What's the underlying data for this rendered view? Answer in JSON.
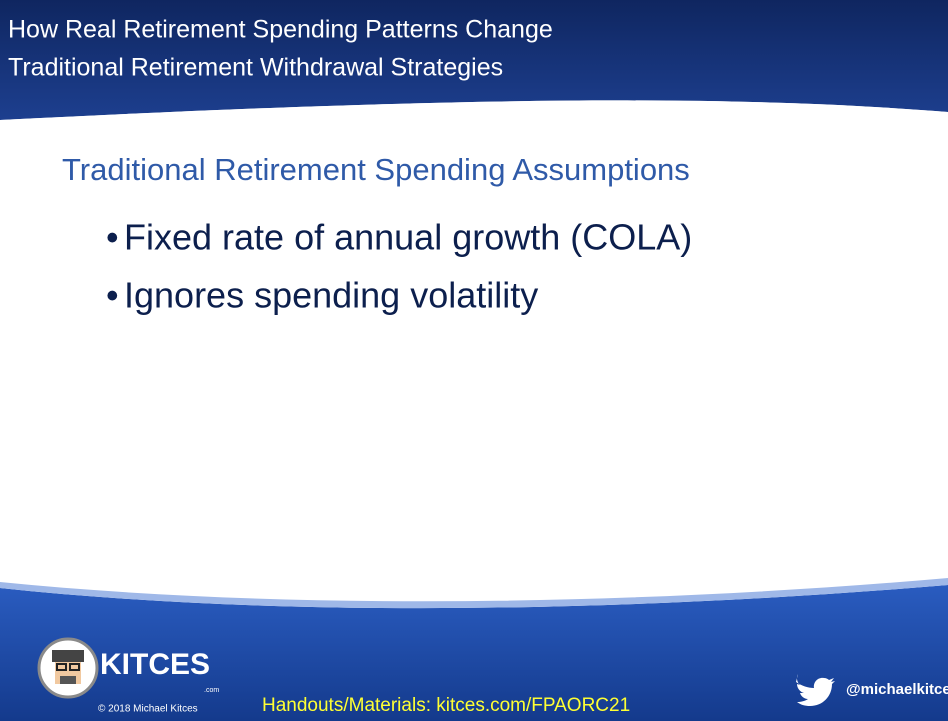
{
  "header": {
    "title": [
      "How Real Retirement Spending Patterns Change",
      "Traditional Retirement Withdrawal Strategies"
    ]
  },
  "body": {
    "heading": "Traditional Retirement Spending Assumptions",
    "bullets": [
      "Fixed rate of annual growth (COLA)",
      "Ignores spending volatility"
    ]
  },
  "footer": {
    "logo_text": "KITCES",
    "logo_suffix": ".com",
    "copyright": "© 2018 Michael Kitces",
    "handouts": "Handouts/Materials: kitces.com/FPAORC21",
    "twitter": "@michaelkitces"
  }
}
